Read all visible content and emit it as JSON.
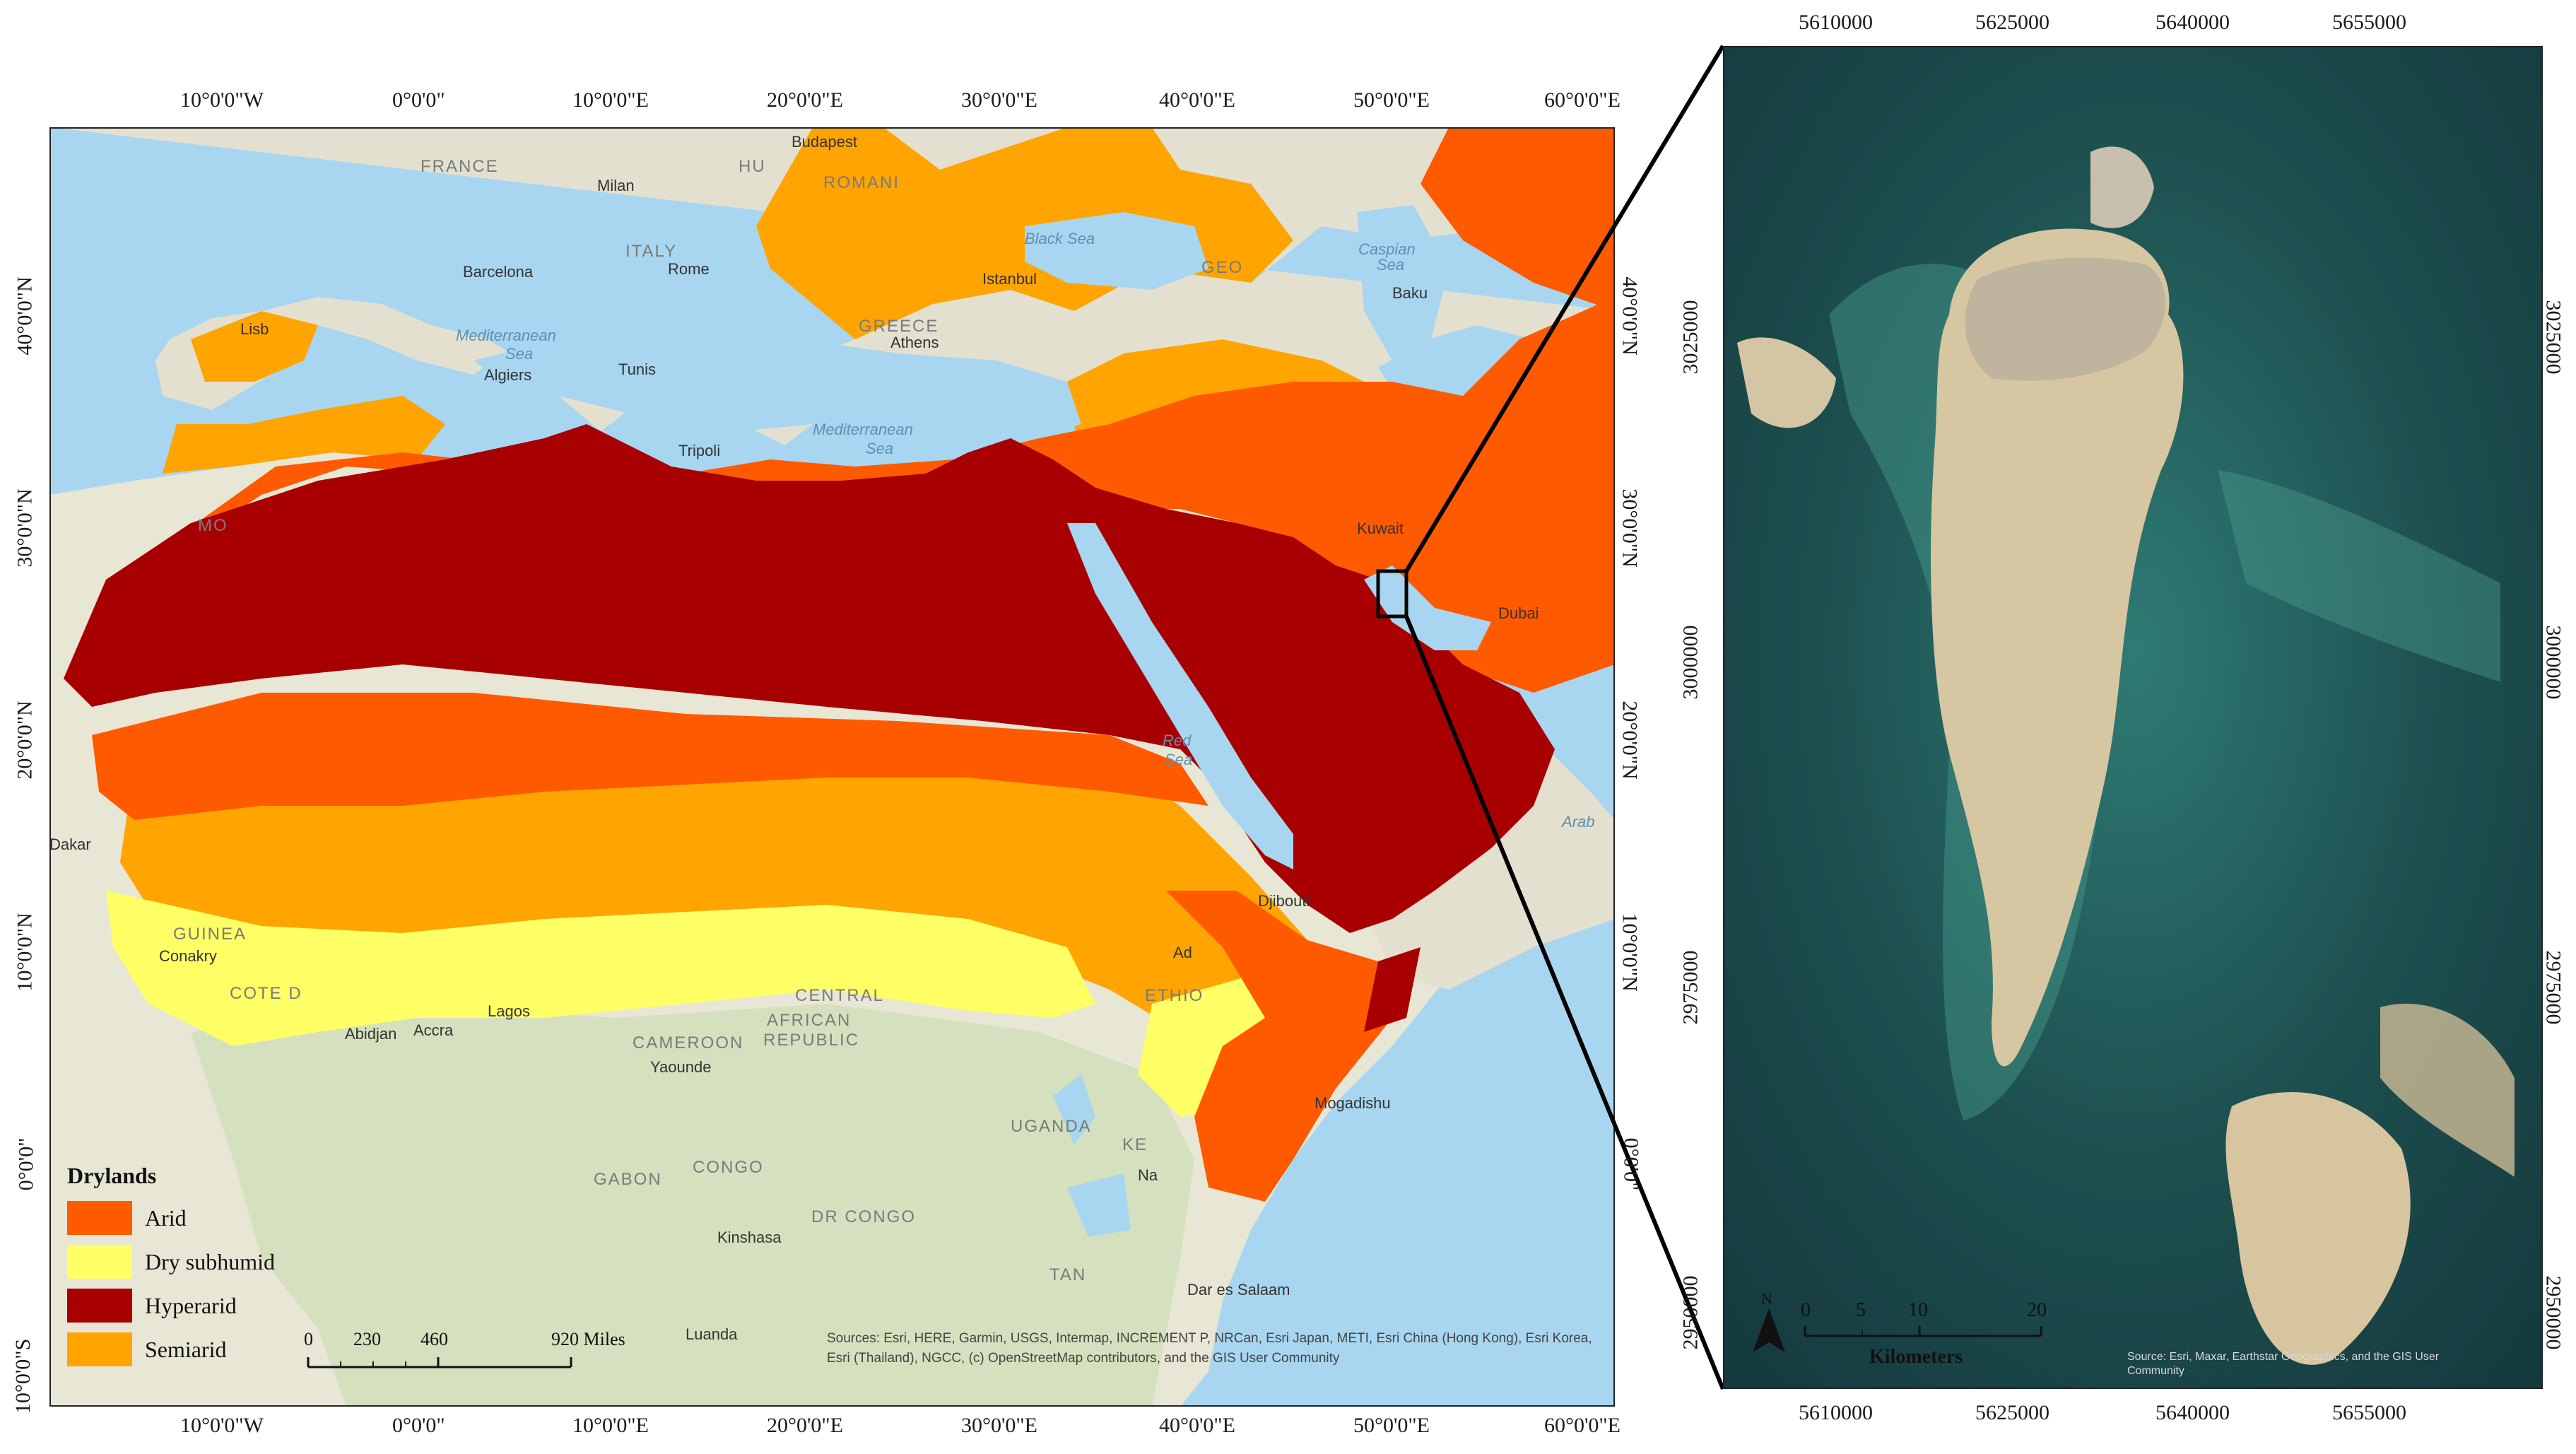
{
  "left_map": {
    "top_ticks": [
      "10°0'0\"W",
      "0°0'0\"",
      "10°0'0\"E",
      "20°0'0\"E",
      "30°0'0\"E",
      "40°0'0\"E",
      "50°0'0\"E",
      "60°0'0\"E"
    ],
    "bottom_ticks": [
      "10°0'0\"W",
      "0°0'0\"",
      "10°0'0\"E",
      "20°0'0\"E",
      "30°0'0\"E",
      "40°0'0\"E",
      "50°0'0\"E",
      "60°0'0\"E"
    ],
    "left_ticks": [
      "40°0'0\"N",
      "30°0'0\"N",
      "20°0'0\"N",
      "10°0'0\"N",
      "0°0'0\"",
      "10°0'0\"S"
    ],
    "right_ticks": [
      "40°0'0\"N",
      "30°0'0\"N",
      "20°0'0\"N",
      "10°0'0\"N",
      "0°0'0\""
    ],
    "places": [
      "Budapest",
      "Milan",
      "Barcelona",
      "Rome",
      "Istanbul",
      "Baku",
      "Athens",
      "Tunis",
      "Algiers",
      "Tripoli",
      "Lisb",
      "Djibouti",
      "Conakry",
      "Accra",
      "Lagos",
      "Yaounde",
      "Kinshasa",
      "Dar es Salaam",
      "Mogadishu",
      "Dubai",
      "Abidjan",
      "Luanda",
      "Dakar",
      "Kuwait",
      "Ad",
      "Na"
    ],
    "countries": [
      "FRANCE",
      "ITALY",
      "ROMANI",
      "HU",
      "GEO",
      "GREECE",
      "GUINEA",
      "COTE D",
      "CAMEROON",
      "CENTRAL",
      "AFRICAN",
      "REPUBLIC",
      "GABON",
      "CONGO",
      "DR CONGO",
      "UGANDA",
      "KE",
      "TAN",
      "ETHIO",
      "MO"
    ],
    "seas": [
      "Mediterranean",
      "Sea",
      "Mediterranean",
      "Sea",
      "Black Sea",
      "Caspian",
      "Sea",
      "Red",
      "Sea",
      "Arab"
    ],
    "legend": {
      "title": "Drylands",
      "items": [
        {
          "label": "Arid",
          "color": "#ff5a00"
        },
        {
          "label": "Dry subhumid",
          "color": "#ffff66"
        },
        {
          "label": "Hyperarid",
          "color": "#a80000"
        },
        {
          "label": "Semiarid",
          "color": "#ffa400"
        }
      ]
    },
    "scale": {
      "labels": [
        "0",
        "230",
        "460",
        "920 Miles"
      ]
    },
    "sources": "Sources: Esri, HERE, Garmin, USGS, Intermap, INCREMENT P, NRCan, Esri Japan, METI, Esri China (Hong Kong), Esri Korea, Esri (Thailand), NGCC, (c) OpenStreetMap contributors, and the GIS User Community"
  },
  "right_map": {
    "top_ticks": [
      "5610000",
      "5625000",
      "5640000",
      "5655000"
    ],
    "bottom_ticks": [
      "5610000",
      "5625000",
      "5640000",
      "5655000"
    ],
    "left_ticks": [
      "3025000",
      "3000000",
      "2975000",
      "2950000"
    ],
    "right_ticks": [
      "3025000",
      "3000000",
      "2975000",
      "2950000"
    ],
    "north_label": "N",
    "km_scale": {
      "labels": [
        "0",
        "5",
        "10",
        "20"
      ],
      "unit": "Kilometers"
    },
    "credit": "Source: Esri, Maxar, Earthstar Geographics, and the GIS User Community"
  }
}
